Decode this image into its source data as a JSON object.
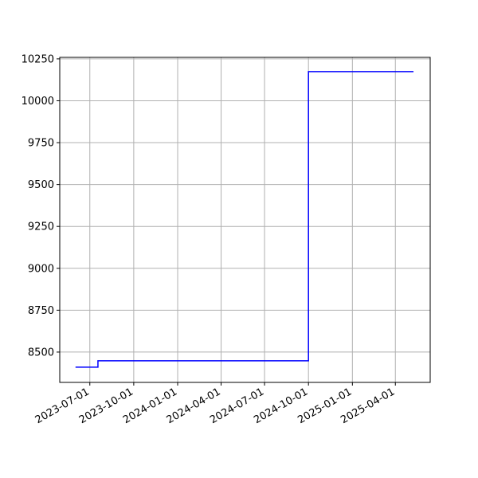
{
  "chart_data": {
    "type": "line",
    "drawstyle": "steps-post",
    "x": [
      "2023-06-01",
      "2023-07-18",
      "2024-10-01",
      "2025-05-09"
    ],
    "series": [
      {
        "color": "#0000ff",
        "values": [
          8410,
          8448,
          10174,
          10174
        ]
      }
    ],
    "xlim": [
      "2023-04-29",
      "2025-06-13"
    ],
    "xticks": [
      "2023-07-01",
      "2023-10-01",
      "2024-01-01",
      "2024-04-01",
      "2024-07-01",
      "2024-10-01",
      "2025-01-01",
      "2025-04-01"
    ],
    "ylim": [
      8319,
      10259
    ],
    "yticks": [
      8500,
      8750,
      9000,
      9250,
      9500,
      9750,
      10000,
      10250
    ],
    "grid": true
  }
}
